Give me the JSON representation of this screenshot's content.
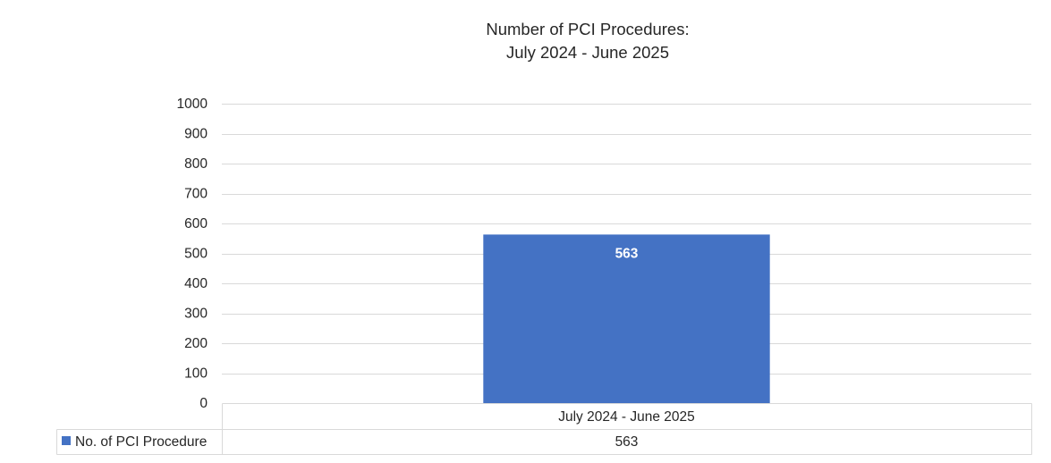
{
  "chart_data": {
    "type": "bar",
    "title": [
      "Number of PCI Procedures:",
      "July 2024 - June 2025"
    ],
    "xlabel": "",
    "ylabel": "",
    "ylim": [
      0,
      1000
    ],
    "yticks": [
      0,
      100,
      200,
      300,
      400,
      500,
      600,
      700,
      800,
      900,
      1000
    ],
    "categories": [
      "July 2024 - June 2025"
    ],
    "series": [
      {
        "name": "No. of PCI Procedure",
        "values": [
          563
        ],
        "color": "#4472C4"
      }
    ],
    "data_labels": [
      "563"
    ],
    "data_table": {
      "rows": [
        {
          "label": "No. of PCI Procedure",
          "values": [
            "563"
          ]
        }
      ]
    },
    "grid": true,
    "legend": "data-table-left"
  }
}
